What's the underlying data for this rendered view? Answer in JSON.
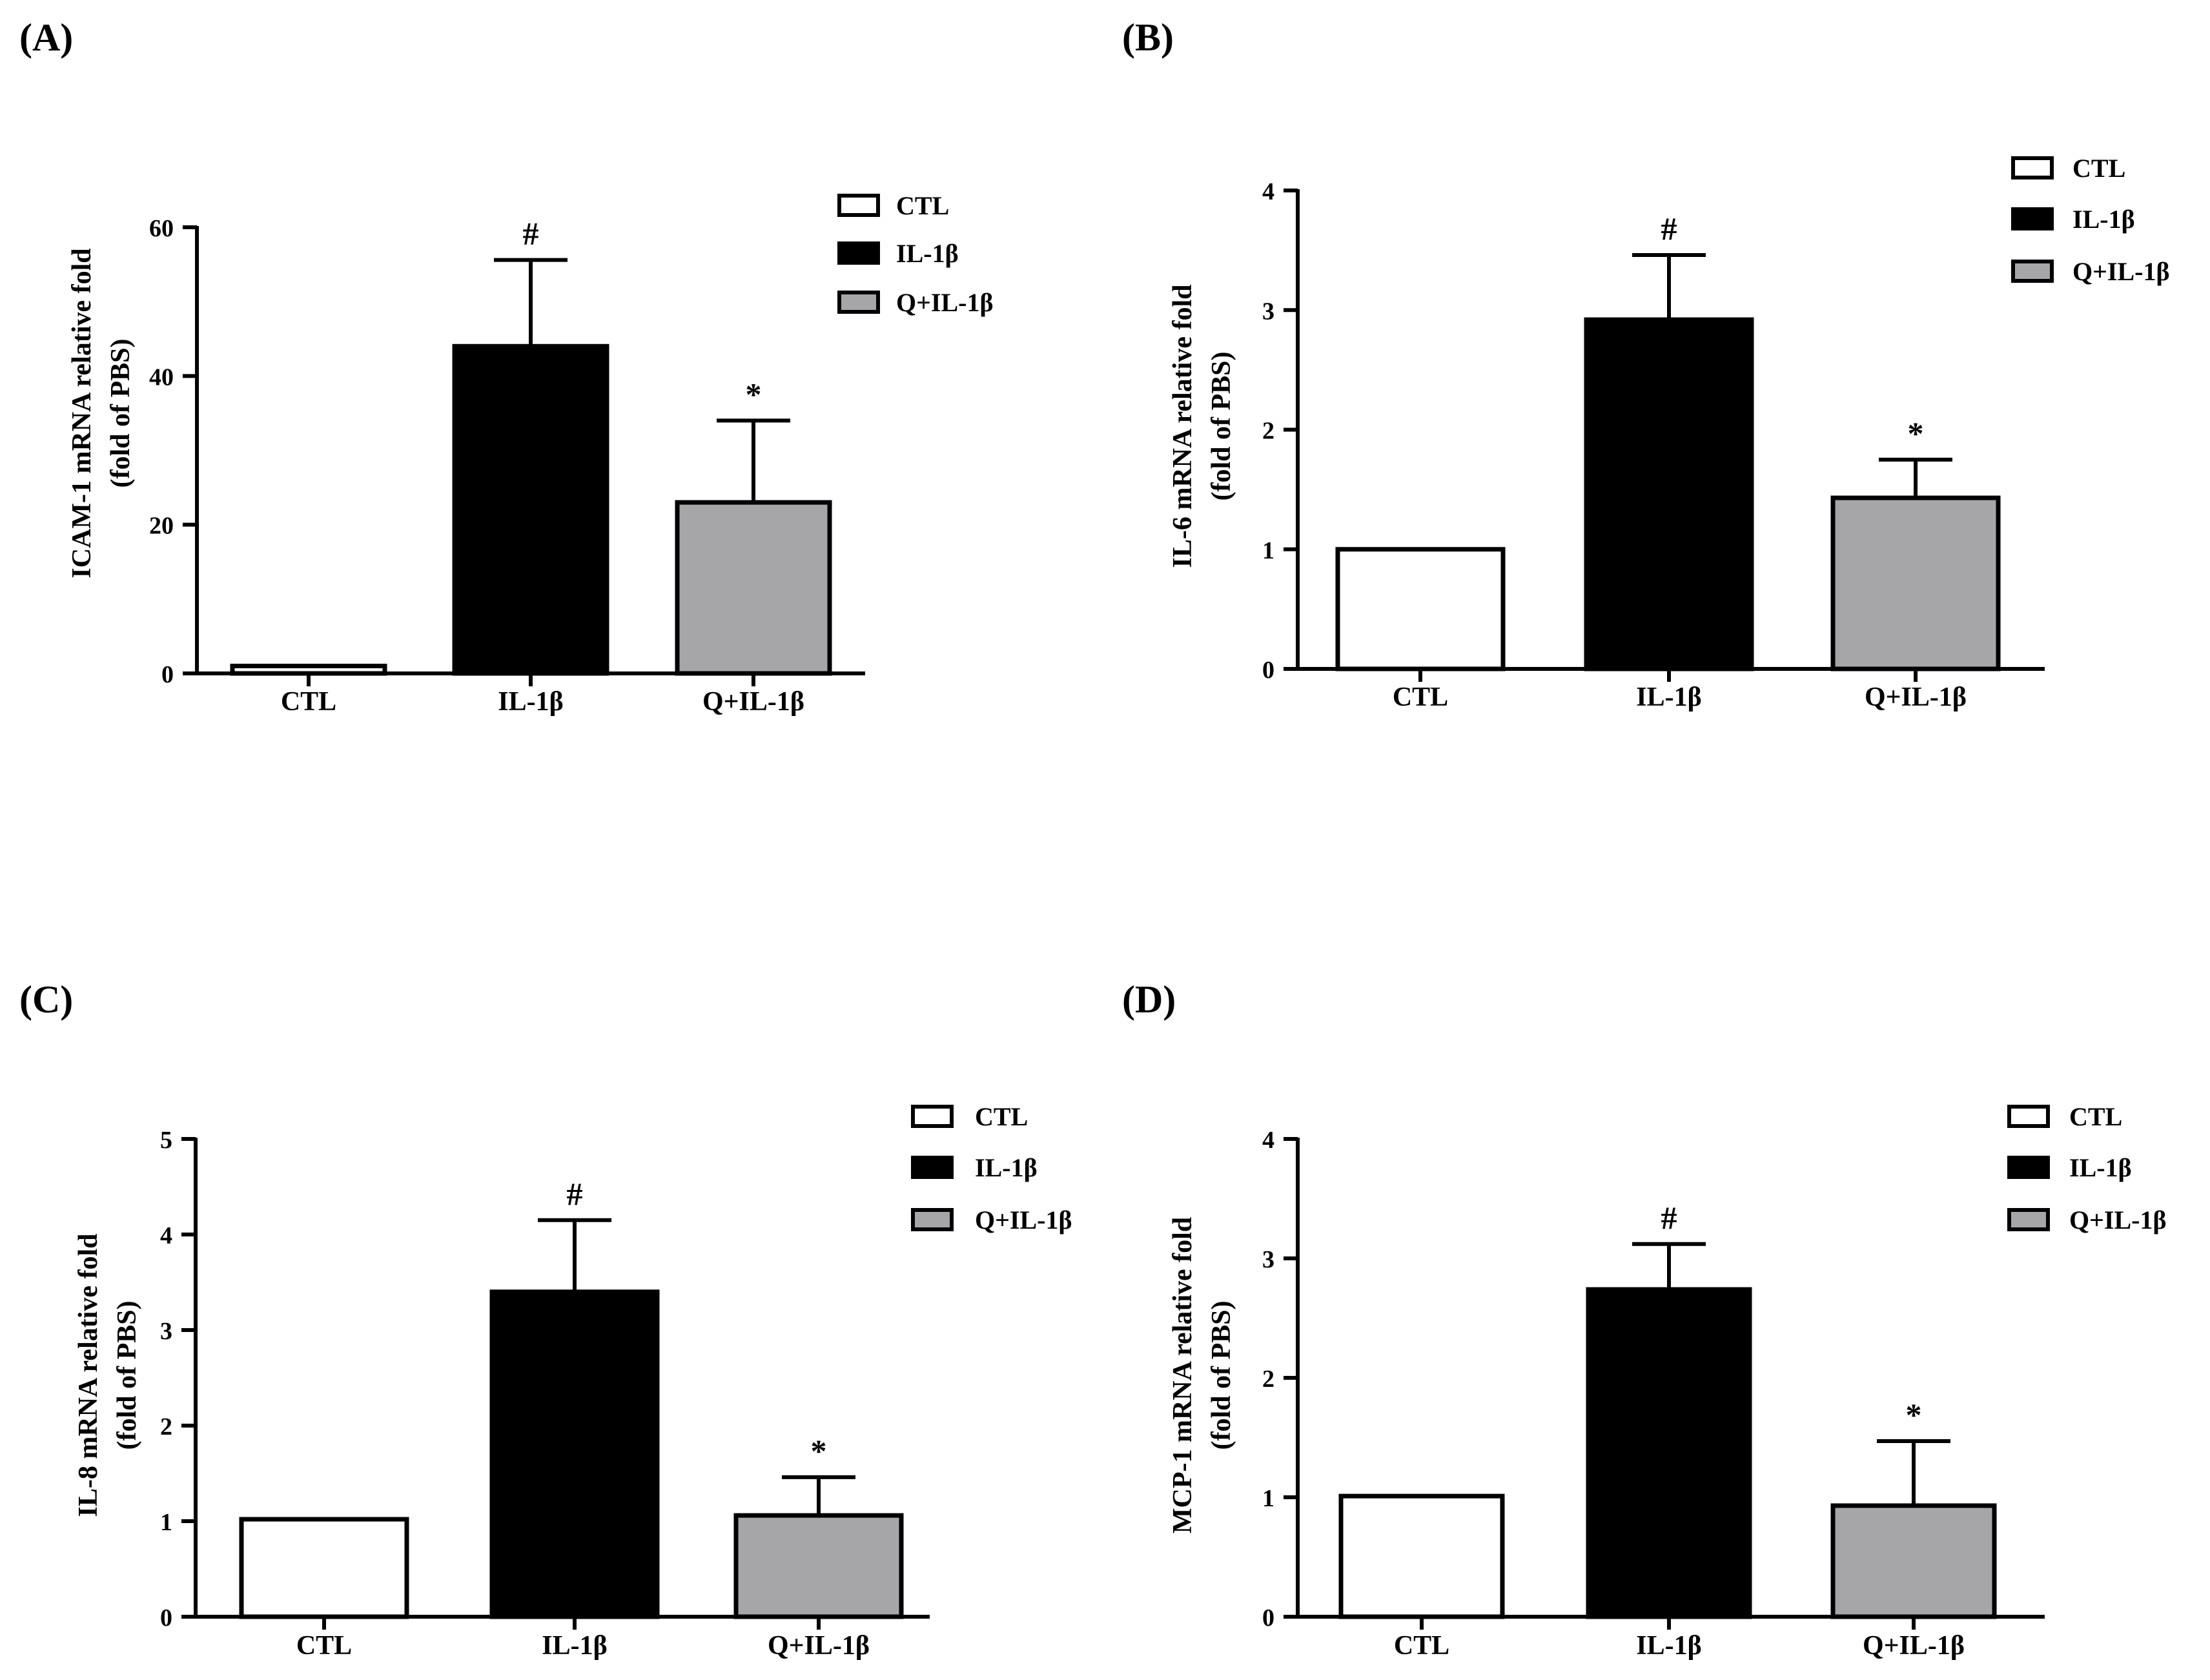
{
  "figure": {
    "panels": [
      {
        "label": "(A)",
        "chart_data": {
          "type": "bar",
          "categories": [
            "CTL",
            "IL-1β",
            "Q+IL-1β"
          ],
          "values": [
            1.0,
            44.0,
            23.0
          ],
          "errors": [
            0.0,
            11.6,
            11.0
          ],
          "significance": [
            "",
            "#",
            "*"
          ],
          "ylabel": "ICAM-1 mRNA relative fold",
          "ylabel2": "(fold of PBS)",
          "ylim": [
            0,
            60
          ],
          "yticks": [
            0,
            20,
            40,
            60
          ],
          "ytick_labels": [
            "0",
            "20",
            "40",
            "60"
          ],
          "legend": [
            "CTL",
            "IL-1β",
            "Q+IL-1β"
          ],
          "legend_position": "top-right"
        }
      },
      {
        "label": "(B)",
        "chart_data": {
          "type": "bar",
          "categories": [
            "CTL",
            "IL-1β",
            "Q+IL-1β"
          ],
          "values": [
            1.0,
            2.92,
            1.43
          ],
          "errors": [
            0.0,
            0.54,
            0.32
          ],
          "significance": [
            "",
            "#",
            "*"
          ],
          "ylabel": "IL-6 mRNA relative fold",
          "ylabel2": "(fold of PBS)",
          "ylim": [
            0,
            4
          ],
          "yticks": [
            0,
            1,
            2,
            3,
            4
          ],
          "ytick_labels": [
            "0",
            "1",
            "2",
            "3",
            "4"
          ],
          "legend": [
            "CTL",
            "IL-1β",
            "Q+IL-1β"
          ],
          "legend_position": "top-right"
        }
      },
      {
        "label": "(C)",
        "chart_data": {
          "type": "bar",
          "categories": [
            "CTL",
            "IL-1β",
            "Q+IL-1β"
          ],
          "values": [
            1.02,
            3.4,
            1.06
          ],
          "errors": [
            0.0,
            0.75,
            0.4
          ],
          "significance": [
            "",
            "#",
            "*"
          ],
          "ylabel": "IL-8 mRNA relative fold",
          "ylabel2": "(fold of PBS)",
          "ylim": [
            0,
            5
          ],
          "yticks": [
            0,
            1,
            2,
            3,
            4,
            5
          ],
          "ytick_labels": [
            "0",
            "1",
            "2",
            "3",
            "4",
            "5"
          ],
          "legend": [
            "CTL",
            "IL-1β",
            "Q+IL-1β"
          ],
          "legend_position": "top-right"
        }
      },
      {
        "label": "(D)",
        "chart_data": {
          "type": "bar",
          "categories": [
            "CTL",
            "IL-1β",
            "Q+IL-1β"
          ],
          "values": [
            1.01,
            2.74,
            0.93
          ],
          "errors": [
            0.0,
            0.38,
            0.54
          ],
          "significance": [
            "",
            "#",
            "*"
          ],
          "ylabel": "MCP-1 mRNA relative fold",
          "ylabel2": "(fold of PBS)",
          "ylim": [
            0,
            4
          ],
          "yticks": [
            0,
            1,
            2,
            3,
            4
          ],
          "ytick_labels": [
            "0",
            "1",
            "2",
            "3",
            "4"
          ],
          "legend": [
            "CTL",
            "IL-1β",
            "Q+IL-1β"
          ],
          "legend_position": "top-right"
        }
      }
    ],
    "series_colors": [
      "#ffffff",
      "#000000",
      "#a6a6a8"
    ],
    "axis_color": "#000000"
  }
}
